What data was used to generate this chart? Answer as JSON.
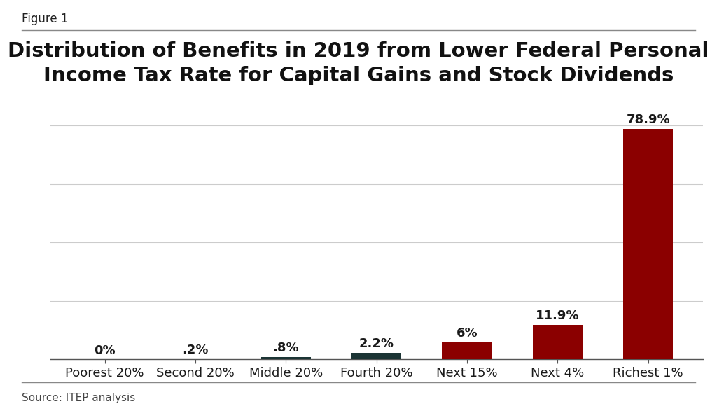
{
  "categories": [
    "Poorest 20%",
    "Second 20%",
    "Middle 20%",
    "Fourth 20%",
    "Next 15%",
    "Next 4%",
    "Richest 1%"
  ],
  "values": [
    0.0,
    0.2,
    0.8,
    2.2,
    6.0,
    11.9,
    78.9
  ],
  "labels": [
    "0%",
    ".2%",
    ".8%",
    "2.2%",
    "6%",
    "11.9%",
    "78.9%"
  ],
  "bar_colors": [
    "#8B0000",
    "#8B0000",
    "#1C3535",
    "#1C3535",
    "#8B0000",
    "#8B0000",
    "#8B0000"
  ],
  "title": "Distribution of Benefits in 2019 from Lower Federal Personal\nIncome Tax Rate for Capital Gains and Stock Dividends",
  "figure_label": "Figure 1",
  "source": "Source: ITEP analysis",
  "title_fontsize": 21,
  "label_fontsize": 13,
  "tick_fontsize": 13,
  "figure_label_fontsize": 12,
  "source_fontsize": 11,
  "background_color": "#FFFFFF",
  "grid_color": "#CCCCCC",
  "ylim": [
    0,
    90
  ],
  "bar_width": 0.55
}
